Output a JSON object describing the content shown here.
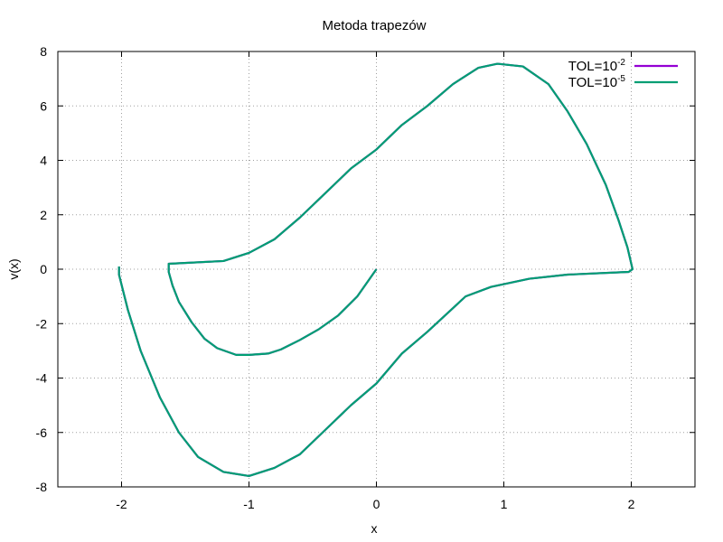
{
  "chart_data": {
    "type": "line",
    "title": "Metoda trapezów",
    "xlabel": "x",
    "ylabel": "v(x)",
    "xlim": [
      -2.5,
      2.5
    ],
    "ylim": [
      -8,
      8
    ],
    "x_ticks": [
      -2,
      -1,
      0,
      1,
      2
    ],
    "y_ticks": [
      -8,
      -6,
      -4,
      -2,
      0,
      2,
      4,
      6,
      8
    ],
    "x_tick_labels": [
      "-2",
      "-1",
      "0",
      "1",
      "2"
    ],
    "y_tick_labels": [
      "-8",
      "-6",
      "-4",
      "-2",
      "0",
      "2",
      "4",
      "6",
      "8"
    ],
    "grid": true,
    "legend_position": "top-right",
    "series": [
      {
        "name_base": "TOL=10",
        "name_exp": "-2",
        "color": "#9400d3",
        "points": [
          [
            0,
            0
          ],
          [
            -0.15,
            -1.0
          ],
          [
            -0.3,
            -1.7
          ],
          [
            -0.45,
            -2.2
          ],
          [
            -0.6,
            -2.6
          ],
          [
            -0.75,
            -2.95
          ],
          [
            -0.85,
            -3.1
          ],
          [
            -1.0,
            -3.15
          ],
          [
            -1.1,
            -3.15
          ],
          [
            -1.25,
            -2.9
          ],
          [
            -1.35,
            -2.55
          ],
          [
            -1.45,
            -1.95
          ],
          [
            -1.55,
            -1.2
          ],
          [
            -1.6,
            -0.6
          ],
          [
            -1.63,
            -0.1
          ],
          [
            -1.63,
            0.2
          ],
          [
            -1.2,
            0.3
          ],
          [
            -1.0,
            0.6
          ],
          [
            -0.8,
            1.1
          ],
          [
            -0.6,
            1.9
          ],
          [
            -0.4,
            2.8
          ],
          [
            -0.2,
            3.7
          ],
          [
            0.0,
            4.4
          ],
          [
            0.2,
            5.3
          ],
          [
            0.4,
            6.0
          ],
          [
            0.6,
            6.8
          ],
          [
            0.8,
            7.4
          ],
          [
            0.95,
            7.55
          ],
          [
            1.15,
            7.45
          ],
          [
            1.35,
            6.8
          ],
          [
            1.5,
            5.8
          ],
          [
            1.65,
            4.6
          ],
          [
            1.8,
            3.1
          ],
          [
            1.9,
            1.8
          ],
          [
            1.97,
            0.8
          ],
          [
            2.01,
            0.0
          ],
          [
            1.98,
            -0.1
          ],
          [
            1.5,
            -0.2
          ],
          [
            1.2,
            -0.35
          ],
          [
            0.9,
            -0.65
          ],
          [
            0.7,
            -1.0
          ],
          [
            0.4,
            -2.3
          ],
          [
            0.2,
            -3.1
          ],
          [
            0.0,
            -4.2
          ],
          [
            -0.2,
            -5.0
          ],
          [
            -0.4,
            -5.9
          ],
          [
            -0.6,
            -6.8
          ],
          [
            -0.8,
            -7.3
          ],
          [
            -1.0,
            -7.6
          ],
          [
            -1.2,
            -7.45
          ],
          [
            -1.4,
            -6.9
          ],
          [
            -1.55,
            -6.0
          ],
          [
            -1.7,
            -4.7
          ],
          [
            -1.85,
            -3.0
          ],
          [
            -1.95,
            -1.5
          ],
          [
            -2.02,
            -0.2
          ],
          [
            -2.02,
            0.1
          ]
        ]
      },
      {
        "name_base": "TOL=10",
        "name_exp": "-5",
        "color": "#009e73",
        "points": [
          [
            0,
            0
          ],
          [
            -0.15,
            -1.0
          ],
          [
            -0.3,
            -1.7
          ],
          [
            -0.45,
            -2.2
          ],
          [
            -0.6,
            -2.6
          ],
          [
            -0.75,
            -2.95
          ],
          [
            -0.85,
            -3.1
          ],
          [
            -1.0,
            -3.15
          ],
          [
            -1.1,
            -3.15
          ],
          [
            -1.25,
            -2.9
          ],
          [
            -1.35,
            -2.55
          ],
          [
            -1.45,
            -1.95
          ],
          [
            -1.55,
            -1.2
          ],
          [
            -1.6,
            -0.6
          ],
          [
            -1.63,
            -0.1
          ],
          [
            -1.63,
            0.2
          ],
          [
            -1.2,
            0.3
          ],
          [
            -1.0,
            0.6
          ],
          [
            -0.8,
            1.1
          ],
          [
            -0.6,
            1.9
          ],
          [
            -0.4,
            2.8
          ],
          [
            -0.2,
            3.7
          ],
          [
            0.0,
            4.4
          ],
          [
            0.2,
            5.3
          ],
          [
            0.4,
            6.0
          ],
          [
            0.6,
            6.8
          ],
          [
            0.8,
            7.4
          ],
          [
            0.95,
            7.55
          ],
          [
            1.15,
            7.45
          ],
          [
            1.35,
            6.8
          ],
          [
            1.5,
            5.8
          ],
          [
            1.65,
            4.6
          ],
          [
            1.8,
            3.1
          ],
          [
            1.9,
            1.8
          ],
          [
            1.97,
            0.8
          ],
          [
            2.01,
            0.0
          ],
          [
            1.98,
            -0.1
          ],
          [
            1.5,
            -0.2
          ],
          [
            1.2,
            -0.35
          ],
          [
            0.9,
            -0.65
          ],
          [
            0.7,
            -1.0
          ],
          [
            0.4,
            -2.3
          ],
          [
            0.2,
            -3.1
          ],
          [
            0.0,
            -4.2
          ],
          [
            -0.2,
            -5.0
          ],
          [
            -0.4,
            -5.9
          ],
          [
            -0.6,
            -6.8
          ],
          [
            -0.8,
            -7.3
          ],
          [
            -1.0,
            -7.6
          ],
          [
            -1.2,
            -7.45
          ],
          [
            -1.4,
            -6.9
          ],
          [
            -1.55,
            -6.0
          ],
          [
            -1.7,
            -4.7
          ],
          [
            -1.85,
            -3.0
          ],
          [
            -1.95,
            -1.5
          ],
          [
            -2.02,
            -0.2
          ],
          [
            -2.02,
            0.1
          ]
        ]
      }
    ]
  }
}
